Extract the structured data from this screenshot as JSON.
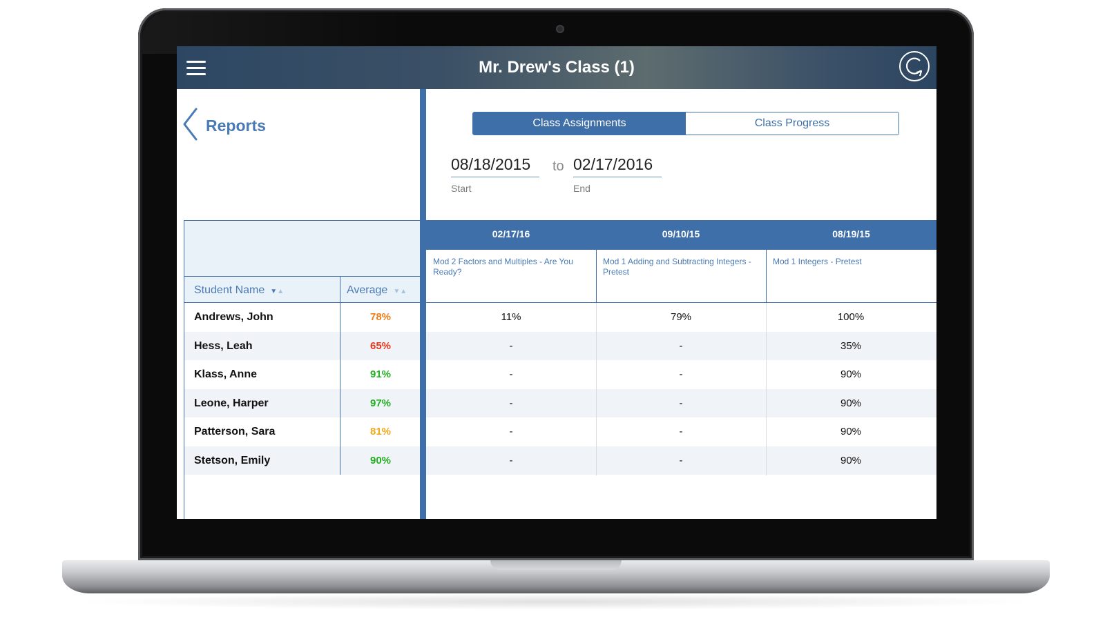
{
  "header": {
    "title": "Mr. Drew's Class (1)"
  },
  "nav": {
    "back_label": "Reports"
  },
  "tabs": [
    {
      "label": "Class Assignments",
      "active": true
    },
    {
      "label": "Class Progress",
      "active": false
    }
  ],
  "date_range": {
    "start": "08/18/2015",
    "start_caption": "Start",
    "separator": "to",
    "end": "02/17/2016",
    "end_caption": "End"
  },
  "columns": {
    "student_name": "Student Name",
    "average": "Average"
  },
  "assignments": [
    {
      "date": "02/17/16",
      "title": "Mod 2 Factors and Multiples - Are You Ready?"
    },
    {
      "date": "09/10/15",
      "title": "Mod 1 Adding and Subtracting Integers - Pretest"
    },
    {
      "date": "08/19/15",
      "title": "Mod 1 Integers - Pretest"
    }
  ],
  "students": [
    {
      "name": "Andrews, John",
      "average": "78%",
      "avg_color": "#f07d1a",
      "scores": [
        "11%",
        "79%",
        "100%"
      ]
    },
    {
      "name": "Hess, Leah",
      "average": "65%",
      "avg_color": "#e8371f",
      "scores": [
        "-",
        "-",
        "35%"
      ]
    },
    {
      "name": "Klass, Anne",
      "average": "91%",
      "avg_color": "#22b022",
      "scores": [
        "-",
        "-",
        "90%"
      ]
    },
    {
      "name": "Leone, Harper",
      "average": "97%",
      "avg_color": "#22b022",
      "scores": [
        "-",
        "-",
        "90%"
      ]
    },
    {
      "name": "Patterson, Sara",
      "average": "81%",
      "avg_color": "#f0a818",
      "scores": [
        "-",
        "-",
        "90%"
      ]
    },
    {
      "name": "Stetson, Emily",
      "average": "90%",
      "avg_color": "#22b022",
      "scores": [
        "-",
        "-",
        "90%"
      ]
    }
  ],
  "icons": {
    "menu": "hamburger-menu-icon",
    "sync": "sync-icon",
    "back": "chevron-left-icon"
  },
  "colors": {
    "accent": "#3e6fa8",
    "header_dark": "#2d4763"
  }
}
